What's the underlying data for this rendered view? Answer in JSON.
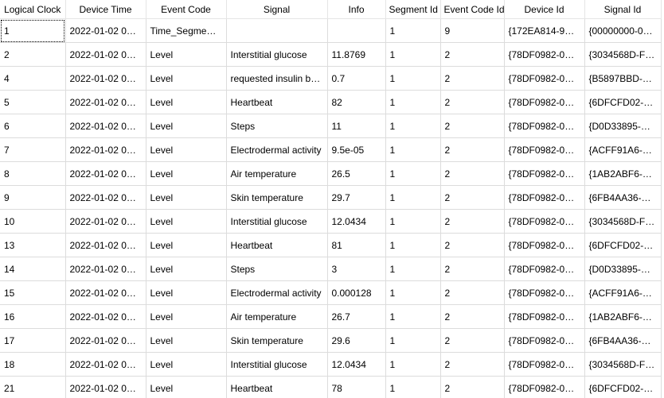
{
  "columns": [
    "Logical Clock",
    "Device Time",
    "Event Code",
    "Signal",
    "Info",
    "Segment Id",
    "Event Code Id",
    "Device Id",
    "Signal Id"
  ],
  "rows": [
    [
      "1",
      "2022-01-02 00:...",
      "Time_Segment...",
      "",
      "",
      "1",
      "9",
      "{172EA814-9DF...",
      "{00000000-000..."
    ],
    [
      "2",
      "2022-01-02 00:...",
      "Level",
      "Interstitial glucose",
      "11.8769",
      "1",
      "2",
      "{78DF0982-070...",
      "{3034568D-F49..."
    ],
    [
      "4",
      "2022-01-02 00:...",
      "Level",
      "requested insulin ba...",
      "0.7",
      "1",
      "2",
      "{78DF0982-070...",
      "{B5897BBD-1E3..."
    ],
    [
      "5",
      "2022-01-02 00:...",
      "Level",
      "Heartbeat",
      "82",
      "1",
      "2",
      "{78DF0982-070...",
      "{6DFCFD02-C4..."
    ],
    [
      "6",
      "2022-01-02 00:...",
      "Level",
      "Steps",
      "11",
      "1",
      "2",
      "{78DF0982-070...",
      "{D0D33895-FBE..."
    ],
    [
      "7",
      "2022-01-02 00:...",
      "Level",
      "Electrodermal activity",
      "9.5e-05",
      "1",
      "2",
      "{78DF0982-070...",
      "{ACFF91A6-D9..."
    ],
    [
      "8",
      "2022-01-02 00:...",
      "Level",
      "Air temperature",
      "26.5",
      "1",
      "2",
      "{78DF0982-070...",
      "{1AB2ABF6-E7..."
    ],
    [
      "9",
      "2022-01-02 00:...",
      "Level",
      "Skin temperature",
      "29.7",
      "1",
      "2",
      "{78DF0982-070...",
      "{6FB4AA36-C0..."
    ],
    [
      "10",
      "2022-01-02 00:...",
      "Level",
      "Interstitial glucose",
      "12.0434",
      "1",
      "2",
      "{78DF0982-070...",
      "{3034568D-F49..."
    ],
    [
      "13",
      "2022-01-02 00:...",
      "Level",
      "Heartbeat",
      "81",
      "1",
      "2",
      "{78DF0982-070...",
      "{6DFCFD02-C4..."
    ],
    [
      "14",
      "2022-01-02 00:...",
      "Level",
      "Steps",
      "3",
      "1",
      "2",
      "{78DF0982-070...",
      "{D0D33895-FBE..."
    ],
    [
      "15",
      "2022-01-02 00:...",
      "Level",
      "Electrodermal activity",
      "0.000128",
      "1",
      "2",
      "{78DF0982-070...",
      "{ACFF91A6-D9..."
    ],
    [
      "16",
      "2022-01-02 00:...",
      "Level",
      "Air temperature",
      "26.7",
      "1",
      "2",
      "{78DF0982-070...",
      "{1AB2ABF6-E7..."
    ],
    [
      "17",
      "2022-01-02 00:...",
      "Level",
      "Skin temperature",
      "29.6",
      "1",
      "2",
      "{78DF0982-070...",
      "{6FB4AA36-C0..."
    ],
    [
      "18",
      "2022-01-02 00:...",
      "Level",
      "Interstitial glucose",
      "12.0434",
      "1",
      "2",
      "{78DF0982-070...",
      "{3034568D-F49..."
    ],
    [
      "21",
      "2022-01-02 00:...",
      "Level",
      "Heartbeat",
      "78",
      "1",
      "2",
      "{78DF0982-070...",
      "{6DFCFD02-C4..."
    ]
  ]
}
